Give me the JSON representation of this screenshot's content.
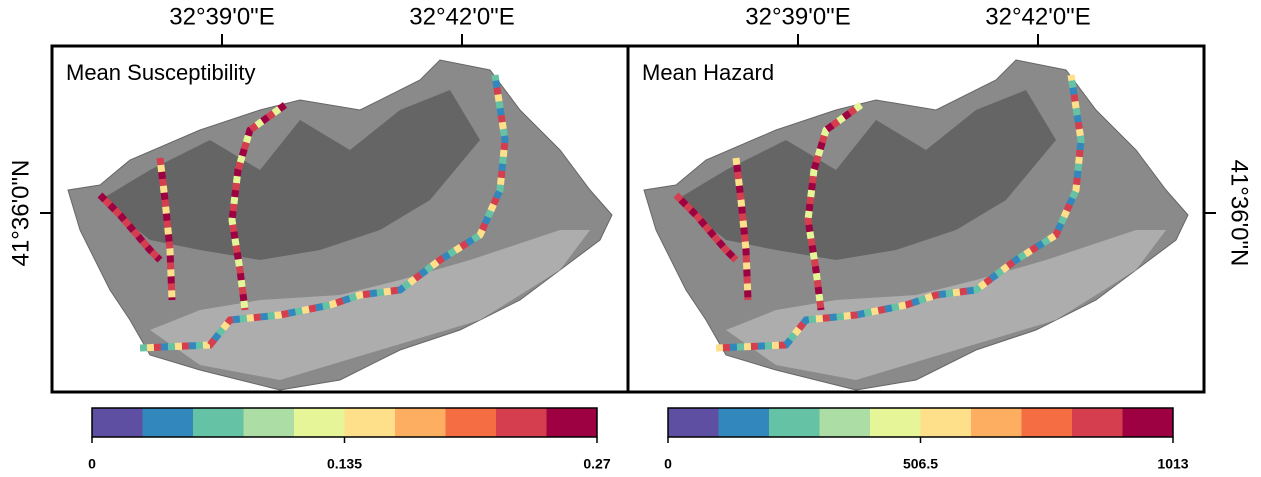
{
  "map": {
    "x_labels": [
      "32°39'0\"E",
      "32°42'0\"E"
    ],
    "y_label": "41°36'0\"N",
    "panels": [
      {
        "title": "Mean Susceptibility",
        "colorbar": {
          "lim": [
            0,
            0.27
          ],
          "ticks": [
            0,
            0.135,
            0.27
          ],
          "colors": [
            "#5e4fa2",
            "#3288bd",
            "#66c2a5",
            "#abdda4",
            "#e6f598",
            "#fee08b",
            "#fdae61",
            "#f46d43",
            "#d53e4f",
            "#9e0142"
          ]
        }
      },
      {
        "title": "Mean Hazard",
        "colorbar": {
          "lim": [
            0,
            1013
          ],
          "ticks": [
            0,
            506.5,
            1013
          ],
          "colors": [
            "#5e4fa2",
            "#3288bd",
            "#66c2a5",
            "#abdda4",
            "#e6f598",
            "#fee08b",
            "#fdae61",
            "#f46d43",
            "#d53e4f",
            "#9e0142"
          ]
        }
      }
    ]
  }
}
